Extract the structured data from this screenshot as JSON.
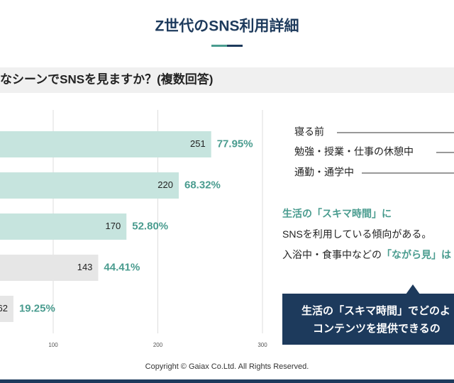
{
  "header": {
    "title": "Z世代のSNS利用詳細"
  },
  "question": "なシーンでSNSを見ますか？(複数回答)",
  "chart_data": {
    "type": "bar",
    "orientation": "horizontal",
    "categories": [
      null,
      null,
      null,
      null,
      null
    ],
    "values": [
      251,
      220,
      170,
      143,
      62
    ],
    "percent_values": [
      77.95,
      68.32,
      52.8,
      44.41,
      19.25
    ],
    "percent_labels": [
      "77.95%",
      "68.32%",
      "52.80%",
      "44.41%",
      "19.25%"
    ],
    "colors": [
      "#c6e4de",
      "#c6e4de",
      "#c6e4de",
      "#e6e6e6",
      "#e6e6e6"
    ],
    "label_color": "#4a9c8f",
    "xlim": [
      0,
      300
    ],
    "xticks": [
      100,
      200,
      300
    ],
    "grid": true
  },
  "notes": {
    "items": [
      "寝る前",
      "勉強・授業・仕事の休憩中",
      "通勤・通学中"
    ]
  },
  "insight": {
    "lines": [
      [
        {
          "text": "生活の「スキマ時間」に",
          "emphasis": true
        }
      ],
      [
        {
          "text": "SNSを利用している傾向がある。"
        }
      ],
      [
        {
          "text": "入浴中・食事中などの"
        },
        {
          "text": "「ながら見」は",
          "emphasis": true
        }
      ]
    ]
  },
  "callout": {
    "lines": [
      "生活の「スキマ時間」でどのよ",
      "コンテンツを提供できるの"
    ]
  },
  "footer": "Copyright © Gaiax Co.Ltd. All Rights Reserved."
}
